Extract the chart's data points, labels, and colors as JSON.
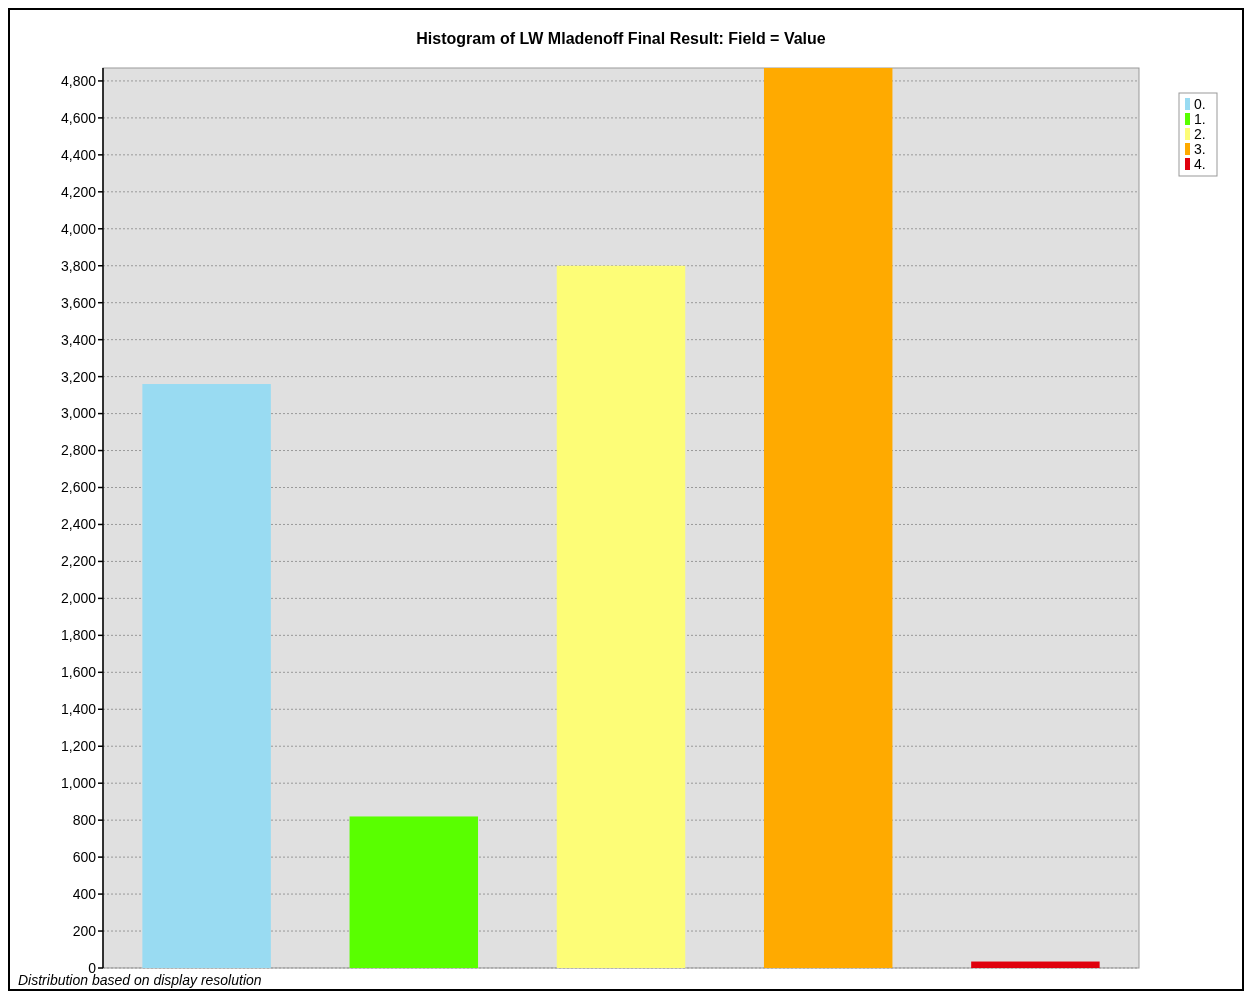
{
  "chart_data": {
    "type": "bar",
    "title": "Histogram of LW Mladenoff Final Result: Field = Value",
    "categories": [
      null,
      null,
      null,
      null,
      null
    ],
    "series": [
      {
        "name": "0.",
        "color": "#99dbf2",
        "values": [
          3160,
          null,
          null,
          null,
          null
        ]
      },
      {
        "name": "1.",
        "color": "#59ff00",
        "values": [
          null,
          820,
          null,
          null,
          null
        ]
      },
      {
        "name": "2.",
        "color": "#fdfd77",
        "values": [
          null,
          null,
          3800,
          null,
          null
        ]
      },
      {
        "name": "3.",
        "color": "#ffaa00",
        "values": [
          null,
          null,
          null,
          4870,
          null
        ]
      },
      {
        "name": "4.",
        "color": "#e0000d",
        "values": [
          null,
          null,
          null,
          null,
          35
        ]
      }
    ],
    "ylim": [
      0,
      4870
    ],
    "yticks": [
      {
        "value": 0,
        "label": "0"
      },
      {
        "value": 200,
        "label": "200"
      },
      {
        "value": 400,
        "label": "400"
      },
      {
        "value": 600,
        "label": "600"
      },
      {
        "value": 800,
        "label": "800"
      },
      {
        "value": 1000,
        "label": "1,000"
      },
      {
        "value": 1200,
        "label": "1,200"
      },
      {
        "value": 1400,
        "label": "1,400"
      },
      {
        "value": 1600,
        "label": "1,600"
      },
      {
        "value": 1800,
        "label": "1,800"
      },
      {
        "value": 2000,
        "label": "2,000"
      },
      {
        "value": 2200,
        "label": "2,200"
      },
      {
        "value": 2400,
        "label": "2,400"
      },
      {
        "value": 2600,
        "label": "2,600"
      },
      {
        "value": 2800,
        "label": "2,800"
      },
      {
        "value": 3000,
        "label": "3,000"
      },
      {
        "value": 3200,
        "label": "3,200"
      },
      {
        "value": 3400,
        "label": "3,400"
      },
      {
        "value": 3600,
        "label": "3,600"
      },
      {
        "value": 3800,
        "label": "3,800"
      },
      {
        "value": 4000,
        "label": "4,000"
      },
      {
        "value": 4200,
        "label": "4,200"
      },
      {
        "value": 4400,
        "label": "4,400"
      },
      {
        "value": 4600,
        "label": "4,600"
      },
      {
        "value": 4800,
        "label": "4,800"
      }
    ],
    "grid": "y",
    "legend": "right",
    "tick_labels": "y",
    "annotations": [
      "Distribution based on display resolution"
    ]
  }
}
